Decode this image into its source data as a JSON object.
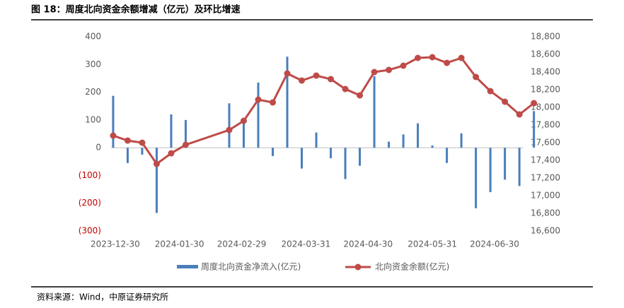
{
  "header": {
    "title": "图 18：周度北向资金余额增减（亿元）及环比增速"
  },
  "chart_data": {
    "type": "bar_line",
    "x": [
      "2023-12-29",
      "2024-01-05",
      "2024-01-12",
      "2024-01-19",
      "2024-01-26",
      "2024-02-02",
      "2024-02-23",
      "2024-03-01",
      "2024-03-08",
      "2024-03-15",
      "2024-03-22",
      "2024-03-29",
      "2024-04-05",
      "2024-04-12",
      "2024-04-19",
      "2024-04-26",
      "2024-05-03",
      "2024-05-10",
      "2024-05-17",
      "2024-05-24",
      "2024-05-31",
      "2024-06-07",
      "2024-06-14",
      "2024-06-21",
      "2024-06-28",
      "2024-07-05",
      "2024-07-12",
      "2024-07-19"
    ],
    "series": [
      {
        "name": "周度北向资金净流入(亿元)",
        "type": "bar",
        "color": "#4a7ebb",
        "values": [
          187,
          -55,
          -25,
          -235,
          120,
          100,
          160,
          95,
          235,
          -30,
          328,
          -75,
          55,
          -38,
          -113,
          -65,
          258,
          22,
          48,
          88,
          8,
          -55,
          52,
          -218,
          -160,
          -115,
          -138,
          132
        ]
      },
      {
        "name": "北向资金余额(亿元)",
        "type": "line",
        "axis": "y2",
        "color": "#be4b48",
        "values": [
          17680,
          17624,
          17600,
          17360,
          17480,
          17576,
          17744,
          17848,
          18088,
          18056,
          18384,
          18304,
          18360,
          18320,
          18208,
          18136,
          18400,
          18424,
          18472,
          18560,
          18568,
          18504,
          18560,
          18344,
          18184,
          18064,
          17920,
          18048
        ]
      }
    ],
    "xlim": [
      "2023-12-28",
      "2024-07-14"
    ],
    "xticks": [
      "2023-12-30",
      "2024-01-30",
      "2024-02-29",
      "2024-03-31",
      "2024-04-30",
      "2024-05-31",
      "2024-06-30"
    ],
    "ylim": [
      -300,
      400
    ],
    "yticks": [
      {
        "value": -300,
        "label": "(300)"
      },
      {
        "value": -200,
        "label": "(200)"
      },
      {
        "value": -100,
        "label": "(100)"
      },
      0,
      100,
      200,
      300,
      400
    ],
    "negative_tick_color": "#c00000",
    "y2lim": [
      16600,
      18800
    ],
    "y2ticks": [
      {
        "value": 16600,
        "label": "16,600"
      },
      {
        "value": 16800,
        "label": "16,800"
      },
      {
        "value": 17000,
        "label": "17,000"
      },
      {
        "value": 17200,
        "label": "17,200"
      },
      {
        "value": 17400,
        "label": "17,400"
      },
      {
        "value": 17600,
        "label": "17,600"
      },
      {
        "value": 17800,
        "label": "17,800"
      },
      {
        "value": 18000,
        "label": "18,000"
      },
      {
        "value": 18200,
        "label": "18,200"
      },
      {
        "value": 18400,
        "label": "18,400"
      },
      {
        "value": 18600,
        "label": "18,600"
      },
      {
        "value": 18800,
        "label": "18,800"
      }
    ],
    "grid": false
  },
  "footer": {
    "source": "资料来源：Wind，中原证券研究所"
  }
}
